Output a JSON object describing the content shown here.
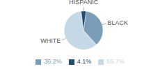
{
  "chart_data": {
    "type": "pie",
    "categories": [
      "WHITE",
      "BLACK",
      "HISPANIC"
    ],
    "values": [
      59.7,
      36.2,
      4.1
    ],
    "value_labels": [
      "59.7%",
      "36.2%",
      "4.1%"
    ],
    "colors": [
      "#c5d8e5",
      "#7a9db8",
      "#1f4e6e"
    ],
    "legend": "bottom"
  }
}
